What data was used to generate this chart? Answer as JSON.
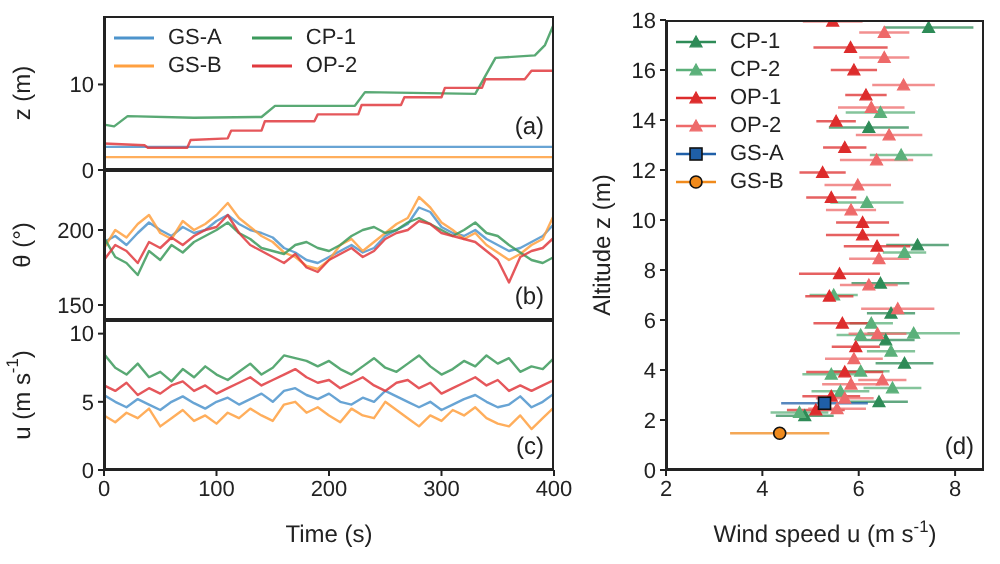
{
  "chart_data": [
    {
      "type": "line",
      "ylabel": "z (m)",
      "xlim": [
        0,
        400
      ],
      "xticks": [
        0,
        100,
        200,
        300,
        400
      ],
      "ylim": [
        0,
        18
      ],
      "yticks": [
        0,
        10
      ],
      "tick_labels": "y",
      "legend": "top left",
      "annotations": [
        "(a)"
      ],
      "series": [
        {
          "name": "GS-A",
          "color": "#4d94cc",
          "x": [
            0,
            400
          ],
          "values": [
            2.7,
            2.7
          ]
        },
        {
          "name": "GS-B",
          "color": "#ffa040",
          "x": [
            0,
            400
          ],
          "values": [
            1.5,
            1.5
          ]
        },
        {
          "name": "CP-1",
          "color": "#3c9a5c",
          "x": [
            0,
            9,
            21,
            80,
            140,
            152,
            223,
            232,
            330,
            348,
            383,
            392,
            400
          ],
          "values": [
            5.3,
            5.1,
            6.3,
            6.1,
            6.2,
            7.5,
            7.5,
            9.1,
            8.9,
            13.1,
            13.4,
            14.6,
            17.1
          ]
        },
        {
          "name": "OP-2",
          "color": "#e0393e",
          "x": [
            0,
            36,
            39,
            74,
            77,
            110,
            113,
            140,
            143,
            187,
            190,
            226,
            229,
            264,
            267,
            300,
            303,
            336,
            339,
            374,
            380,
            400
          ],
          "values": [
            3.1,
            2.9,
            2.6,
            2.6,
            3.5,
            3.7,
            4.6,
            4.6,
            5.7,
            5.7,
            6.5,
            6.5,
            7.6,
            7.6,
            8.5,
            8.5,
            9.6,
            9.6,
            10.6,
            10.6,
            11.6,
            11.6
          ]
        }
      ]
    },
    {
      "type": "line",
      "ylabel": "θ (°)",
      "xlim": [
        0,
        400
      ],
      "xticks": [
        0,
        100,
        200,
        300,
        400
      ],
      "ylim": [
        140,
        240
      ],
      "yticks": [
        150,
        200
      ],
      "tick_labels": "y",
      "annotations": [
        "(b)"
      ],
      "x": [
        0,
        10,
        20,
        30,
        40,
        50,
        60,
        70,
        80,
        90,
        100,
        110,
        120,
        130,
        140,
        150,
        160,
        170,
        180,
        190,
        200,
        210,
        220,
        230,
        240,
        250,
        260,
        270,
        280,
        290,
        300,
        310,
        320,
        330,
        340,
        350,
        360,
        370,
        380,
        390,
        400
      ],
      "series": [
        {
          "color": "#4d94cc",
          "values": [
            192,
            196,
            190,
            198,
            205,
            200,
            196,
            202,
            198,
            200,
            206,
            210,
            204,
            200,
            198,
            195,
            188,
            185,
            180,
            178,
            182,
            186,
            190,
            185,
            188,
            196,
            200,
            204,
            215,
            212,
            202,
            198,
            196,
            200,
            194,
            190,
            186,
            188,
            192,
            196,
            204
          ]
        },
        {
          "color": "#ffa040",
          "values": [
            188,
            200,
            195,
            204,
            210,
            198,
            194,
            206,
            200,
            204,
            210,
            218,
            208,
            202,
            196,
            192,
            185,
            182,
            176,
            174,
            180,
            190,
            194,
            186,
            192,
            198,
            204,
            208,
            222,
            215,
            205,
            200,
            194,
            198,
            190,
            185,
            180,
            184,
            190,
            194,
            210
          ]
        },
        {
          "color": "#3c9a5c",
          "values": [
            195,
            182,
            178,
            170,
            186,
            180,
            190,
            185,
            192,
            196,
            200,
            205,
            198,
            194,
            188,
            186,
            184,
            190,
            192,
            188,
            186,
            190,
            196,
            200,
            202,
            198,
            200,
            205,
            208,
            204,
            200,
            196,
            200,
            205,
            198,
            196,
            190,
            185,
            180,
            178,
            182
          ]
        },
        {
          "color": "#e0393e",
          "values": [
            180,
            190,
            186,
            178,
            192,
            188,
            195,
            190,
            196,
            200,
            202,
            210,
            198,
            190,
            186,
            182,
            178,
            184,
            175,
            172,
            180,
            184,
            188,
            182,
            186,
            194,
            198,
            200,
            206,
            204,
            198,
            196,
            194,
            192,
            186,
            180,
            165,
            182,
            186,
            188,
            195
          ]
        }
      ]
    },
    {
      "type": "line",
      "ylabel": "u (m s$^{-1}$)",
      "xlabel": "Time (s)",
      "xlim": [
        0,
        400
      ],
      "xticks": [
        0,
        100,
        200,
        300,
        400
      ],
      "ylim": [
        0,
        11
      ],
      "yticks": [
        0,
        5,
        10
      ],
      "annotations": [
        "(c)"
      ],
      "x": [
        0,
        10,
        20,
        30,
        40,
        50,
        60,
        70,
        80,
        90,
        100,
        110,
        120,
        130,
        140,
        150,
        160,
        170,
        180,
        190,
        200,
        210,
        220,
        230,
        240,
        250,
        260,
        270,
        280,
        290,
        300,
        310,
        320,
        330,
        340,
        350,
        360,
        370,
        380,
        390,
        400
      ],
      "series": [
        {
          "color": "#4d94cc",
          "values": [
            5.5,
            5.0,
            4.6,
            5.2,
            4.8,
            4.4,
            5.0,
            5.4,
            4.9,
            4.5,
            5.0,
            5.3,
            4.8,
            5.2,
            5.6,
            5.0,
            5.8,
            6.0,
            5.5,
            5.2,
            5.6,
            5.0,
            4.8,
            5.3,
            5.0,
            5.8,
            5.4,
            5.0,
            4.6,
            5.0,
            4.4,
            4.8,
            5.2,
            5.5,
            5.0,
            4.6,
            4.8,
            5.4,
            4.6,
            5.0,
            5.6
          ]
        },
        {
          "color": "#ffa040",
          "values": [
            4.0,
            3.5,
            4.2,
            3.8,
            4.5,
            3.2,
            3.8,
            4.4,
            3.6,
            4.0,
            3.4,
            4.2,
            3.8,
            4.5,
            4.0,
            3.6,
            4.8,
            5.0,
            4.2,
            4.6,
            4.0,
            3.5,
            4.5,
            4.0,
            3.8,
            5.0,
            4.4,
            3.8,
            3.2,
            4.0,
            3.6,
            4.4,
            4.0,
            4.6,
            3.8,
            3.4,
            3.2,
            4.0,
            3.0,
            3.8,
            4.6
          ]
        },
        {
          "color": "#3c9a5c",
          "values": [
            8.5,
            7.5,
            7.0,
            7.8,
            6.8,
            7.2,
            6.5,
            7.4,
            6.8,
            7.6,
            7.0,
            6.6,
            7.2,
            7.8,
            7.0,
            7.5,
            8.4,
            8.2,
            8.0,
            7.6,
            8.0,
            7.4,
            7.0,
            7.6,
            8.2,
            7.5,
            7.2,
            7.8,
            8.4,
            7.6,
            7.0,
            7.4,
            8.0,
            7.6,
            8.4,
            7.8,
            8.2,
            7.2,
            7.6,
            7.4,
            8.2
          ]
        },
        {
          "color": "#e0393e",
          "values": [
            6.2,
            5.8,
            6.4,
            5.5,
            6.0,
            5.6,
            6.2,
            6.5,
            5.8,
            6.2,
            5.6,
            6.0,
            6.4,
            6.8,
            6.2,
            6.6,
            7.0,
            7.4,
            6.8,
            6.4,
            6.6,
            6.0,
            6.4,
            6.8,
            6.2,
            5.8,
            6.4,
            6.6,
            6.0,
            6.4,
            5.6,
            6.0,
            6.4,
            6.8,
            6.2,
            6.6,
            5.8,
            6.2,
            5.8,
            6.2,
            6.6
          ]
        }
      ]
    },
    {
      "type": "scatter",
      "xlabel": "Wind speed u (m s$^{-1}$)",
      "ylabel": "Altitude z (m)",
      "xlim": [
        2,
        8.6
      ],
      "xticks": [
        2,
        4,
        6,
        8
      ],
      "ylim": [
        0,
        18
      ],
      "yticks": [
        0,
        2,
        4,
        6,
        8,
        10,
        12,
        14,
        16,
        18
      ],
      "legend": "top left",
      "annotations": [
        "(d)"
      ],
      "series": [
        {
          "name": "CP-1",
          "color": "#2e8b57",
          "marker": "triangle",
          "x": [
            7.45,
            6.21,
            7.22,
            6.45,
            6.67,
            6.56,
            6.95,
            6.42,
            4.88
          ],
          "values": [
            17.7,
            13.7,
            9.0,
            7.47,
            6.27,
            5.2,
            4.27,
            2.73,
            2.17
          ],
          "xerrors": [
            0.93,
            0.83,
            0.65,
            0.6,
            0.5,
            0.6,
            0.6,
            0.6,
            0.6
          ]
        },
        {
          "name": "CP-2",
          "color": "#5bb07a",
          "marker": "triangle",
          "x": [
            6.45,
            6.88,
            6.17,
            6.95,
            5.48,
            6.26,
            7.14,
            6.04,
            6.67,
            6.04,
            5.43,
            6.7,
            5.62,
            4.77
          ],
          "values": [
            14.3,
            12.6,
            10.7,
            8.7,
            7.0,
            5.87,
            5.47,
            5.4,
            4.75,
            3.95,
            3.83,
            3.28,
            3.15,
            2.3
          ],
          "xerrors": [
            0.72,
            0.65,
            0.76,
            0.45,
            0.5,
            0.45,
            0.96,
            0.5,
            0.5,
            0.6,
            0.6,
            0.6,
            0.6,
            0.6
          ]
        },
        {
          "name": "OP-1",
          "color": "#dd2c2c",
          "marker": "triangle",
          "x": [
            5.46,
            5.83,
            5.9,
            6.15,
            5.53,
            5.71,
            5.25,
            5.43,
            6.08,
            6.08,
            6.38,
            5.6,
            5.39,
            5.66,
            5.94,
            5.71,
            5.43,
            5.11
          ],
          "values": [
            17.95,
            16.9,
            16.0,
            15.0,
            13.95,
            12.9,
            11.9,
            10.9,
            9.9,
            9.4,
            8.95,
            7.85,
            6.95,
            5.87,
            4.93,
            3.92,
            2.95,
            2.4
          ],
          "xerrors": [
            0.62,
            0.77,
            0.48,
            0.43,
            0.41,
            0.45,
            0.48,
            0.52,
            0.55,
            0.76,
            0.69,
            0.84,
            0.5,
            0.6,
            0.5,
            0.8,
            0.6,
            0.6
          ]
        },
        {
          "name": "OP-2",
          "color": "#ee6a6a",
          "marker": "triangle",
          "x": [
            6.53,
            6.53,
            6.93,
            6.26,
            6.63,
            6.37,
            5.98,
            5.84,
            6.42,
            6.21,
            6.81,
            6.39,
            5.9,
            6.49,
            5.84,
            5.71,
            5.55
          ],
          "values": [
            17.5,
            16.5,
            15.4,
            14.5,
            13.4,
            12.4,
            11.4,
            10.4,
            8.45,
            7.4,
            6.45,
            5.45,
            4.45,
            3.6,
            3.43,
            2.87,
            2.45
          ],
          "xerrors": [
            0.52,
            0.52,
            0.65,
            0.69,
            0.69,
            0.76,
            0.69,
            0.52,
            0.62,
            0.6,
            0.76,
            0.6,
            0.6,
            0.5,
            0.6,
            0.6,
            0.6
          ]
        },
        {
          "name": "GS-A",
          "color": "#1f5fa8",
          "marker": "square",
          "x": [
            5.29
          ],
          "values": [
            2.67
          ],
          "xerrors": [
            0.9
          ]
        },
        {
          "name": "GS-B",
          "color": "#f08a1c",
          "marker": "circle",
          "x": [
            4.36
          ],
          "values": [
            1.47
          ],
          "xerrors": [
            1.03
          ]
        }
      ]
    }
  ]
}
